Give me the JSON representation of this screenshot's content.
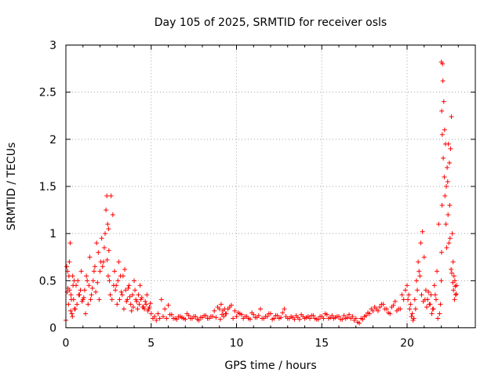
{
  "chart_data": {
    "type": "scatter",
    "title": "Day 105 of 2025, SRMTID for receiver osls",
    "xlabel": "GPS time / hours",
    "ylabel": "SRMTID / TECUs",
    "xlim": [
      0,
      24
    ],
    "ylim": [
      0,
      3
    ],
    "xticks": [
      0,
      5,
      10,
      15,
      20
    ],
    "xtick_labels": [
      "0",
      "5",
      "10",
      "15",
      "20"
    ],
    "yticks": [
      0,
      0.5,
      1,
      1.5,
      2,
      2.5,
      3
    ],
    "ytick_labels": [
      "0",
      "0.5",
      "1",
      "1.5",
      "2",
      "2.5",
      "3"
    ],
    "grid": true,
    "marker": "+",
    "color": "#ff0000",
    "series": [
      {
        "name": "SRMTID",
        "x": [
          0.0,
          0.05,
          0.1,
          0.15,
          0.2,
          0.25,
          0.3,
          0.35,
          0.4,
          0.45,
          0.5,
          0.6,
          0.7,
          0.8,
          0.9,
          1.0,
          1.1,
          1.2,
          1.3,
          1.4,
          1.5,
          1.6,
          1.7,
          1.8,
          1.9,
          2.0,
          2.1,
          2.2,
          2.3,
          2.35,
          2.4,
          2.45,
          2.5,
          2.55,
          2.6,
          2.7,
          2.8,
          2.9,
          3.0,
          3.1,
          3.2,
          3.3,
          3.4,
          3.5,
          3.6,
          3.7,
          3.8,
          3.9,
          4.0,
          4.1,
          4.2,
          4.3,
          4.4,
          4.5,
          4.6,
          4.7,
          4.8,
          4.9,
          5.0,
          5.1,
          5.2,
          5.3,
          5.5,
          5.7,
          5.9,
          6.1,
          6.3,
          6.5,
          6.7,
          6.9,
          7.1,
          7.3,
          7.5,
          7.7,
          7.9,
          8.1,
          8.3,
          8.5,
          8.7,
          8.9,
          9.0,
          9.1,
          9.2,
          9.3,
          9.4,
          9.6,
          9.8,
          10.0,
          10.2,
          10.4,
          10.6,
          10.8,
          11.0,
          11.2,
          11.4,
          11.6,
          11.8,
          12.0,
          12.2,
          12.4,
          12.6,
          12.8,
          13.0,
          13.2,
          13.4,
          13.6,
          13.8,
          14.0,
          14.2,
          14.4,
          14.6,
          14.8,
          15.0,
          15.2,
          15.4,
          15.6,
          15.8,
          16.0,
          16.2,
          16.4,
          16.6,
          16.8,
          17.0,
          17.2,
          17.4,
          17.6,
          17.8,
          18.0,
          18.2,
          18.4,
          18.6,
          18.8,
          19.0,
          19.2,
          19.4,
          19.6,
          19.8,
          20.0,
          20.1,
          20.2,
          20.3,
          20.4,
          20.5,
          20.6,
          20.7,
          20.8,
          20.9,
          21.0,
          21.1,
          21.2,
          21.3,
          21.4,
          21.5,
          21.6,
          21.7,
          21.8,
          21.9,
          21.95,
          22.0,
          22.02,
          22.05,
          22.08,
          22.1,
          22.15,
          22.2,
          22.25,
          22.3,
          22.35,
          22.4,
          22.45,
          22.5,
          22.55,
          22.6,
          22.65,
          22.7,
          22.75,
          22.8,
          22.85,
          22.9,
          0.08,
          0.12,
          0.18,
          0.22,
          0.28,
          0.32,
          0.38,
          0.42,
          0.48,
          0.55,
          0.65,
          0.75,
          0.85,
          0.95,
          1.05,
          1.15,
          1.25,
          1.35,
          1.45,
          1.55,
          1.65,
          1.75,
          1.85,
          1.95,
          2.05,
          2.15,
          2.25,
          2.42,
          2.48,
          2.52,
          2.65,
          2.75,
          2.85,
          2.95,
          3.05,
          3.15,
          3.25,
          3.35,
          3.45,
          3.55,
          3.65,
          3.75,
          3.85,
          3.95,
          4.05,
          4.15,
          4.25,
          4.35,
          4.45,
          4.55,
          4.65,
          4.75,
          4.85,
          4.95,
          5.4,
          5.6,
          5.8,
          6.0,
          6.2,
          6.4,
          6.6,
          6.8,
          7.0,
          7.2,
          7.4,
          7.6,
          7.8,
          8.0,
          8.2,
          8.4,
          8.6,
          8.8,
          9.05,
          9.15,
          9.25,
          9.35,
          9.5,
          9.7,
          9.9,
          10.1,
          10.3,
          10.5,
          10.7,
          10.9,
          11.1,
          11.3,
          11.5,
          11.7,
          11.9,
          12.1,
          12.3,
          12.5,
          12.7,
          12.9,
          13.1,
          13.3,
          13.5,
          13.7,
          13.9,
          14.1,
          14.3,
          14.5,
          14.7,
          14.9,
          15.1,
          15.3,
          15.5,
          15.7,
          15.9,
          16.1,
          16.3,
          16.5,
          16.7,
          16.9,
          17.1,
          17.3,
          17.5,
          17.7,
          17.9,
          18.1,
          18.3,
          18.5,
          18.7,
          18.9,
          19.1,
          19.3,
          19.5,
          19.7,
          19.9,
          20.05,
          20.15,
          20.25,
          20.35,
          20.45,
          20.55,
          20.65,
          20.75,
          20.85,
          20.95,
          21.05,
          21.15,
          21.25,
          21.35,
          21.45,
          21.55,
          21.65,
          21.75,
          21.85,
          22.01,
          22.03,
          22.06,
          22.12,
          22.18,
          22.22,
          22.28,
          22.32,
          22.38,
          22.42,
          22.48,
          22.52,
          22.58,
          22.62,
          22.68,
          22.72,
          22.78,
          22.82,
          22.88
        ],
        "y": [
          0.08,
          0.65,
          0.6,
          0.25,
          0.7,
          0.9,
          0.35,
          0.15,
          0.55,
          0.3,
          0.2,
          0.45,
          0.5,
          0.35,
          0.6,
          0.3,
          0.4,
          0.55,
          0.25,
          0.75,
          0.35,
          0.5,
          0.65,
          0.9,
          0.8,
          0.6,
          0.95,
          0.7,
          1.0,
          1.25,
          1.4,
          1.1,
          1.05,
          0.5,
          0.35,
          0.3,
          0.45,
          0.4,
          0.25,
          0.7,
          0.55,
          0.35,
          0.2,
          0.4,
          0.3,
          0.45,
          0.25,
          0.35,
          0.5,
          0.3,
          0.2,
          0.25,
          0.3,
          0.22,
          0.2,
          0.25,
          0.18,
          0.22,
          0.15,
          0.1,
          0.12,
          0.08,
          0.1,
          0.12,
          0.1,
          0.14,
          0.1,
          0.09,
          0.12,
          0.1,
          0.15,
          0.1,
          0.12,
          0.09,
          0.11,
          0.13,
          0.1,
          0.12,
          0.18,
          0.22,
          0.2,
          0.25,
          0.18,
          0.2,
          0.15,
          0.22,
          0.1,
          0.12,
          0.15,
          0.1,
          0.12,
          0.09,
          0.14,
          0.11,
          0.2,
          0.1,
          0.12,
          0.15,
          0.1,
          0.13,
          0.11,
          0.2,
          0.1,
          0.12,
          0.09,
          0.11,
          0.14,
          0.1,
          0.12,
          0.13,
          0.1,
          0.09,
          0.12,
          0.15,
          0.1,
          0.13,
          0.11,
          0.12,
          0.09,
          0.1,
          0.14,
          0.12,
          0.1,
          0.05,
          0.09,
          0.13,
          0.15,
          0.18,
          0.2,
          0.22,
          0.25,
          0.2,
          0.15,
          0.24,
          0.18,
          0.2,
          0.3,
          0.45,
          0.35,
          0.25,
          0.15,
          0.1,
          0.2,
          0.4,
          0.6,
          0.9,
          1.02,
          0.75,
          0.4,
          0.3,
          0.25,
          0.35,
          0.2,
          0.45,
          0.3,
          0.1,
          0.15,
          0.25,
          0.5,
          0.8,
          1.3,
          2.8,
          2.62,
          2.4,
          2.1,
          1.95,
          1.5,
          1.7,
          1.2,
          0.9,
          1.3,
          1.9,
          2.24,
          1.0,
          0.7,
          0.55,
          0.5,
          0.35,
          0.45,
          0.38,
          0.42,
          0.55,
          0.4,
          0.18,
          0.3,
          0.12,
          0.45,
          0.5,
          0.2,
          0.25,
          0.35,
          0.4,
          0.28,
          0.32,
          0.15,
          0.5,
          0.45,
          0.3,
          0.42,
          0.6,
          0.38,
          0.48,
          0.3,
          0.7,
          0.65,
          0.85,
          0.72,
          0.55,
          0.82,
          1.4,
          1.2,
          0.6,
          0.45,
          0.5,
          0.3,
          0.38,
          0.55,
          0.62,
          0.28,
          0.42,
          0.33,
          0.18,
          0.22,
          0.4,
          0.28,
          0.35,
          0.45,
          0.32,
          0.22,
          0.28,
          0.35,
          0.2,
          0.26,
          0.15,
          0.3,
          0.2,
          0.24,
          0.14,
          0.1,
          0.12,
          0.11,
          0.09,
          0.13,
          0.1,
          0.12,
          0.08,
          0.11,
          0.13,
          0.1,
          0.12,
          0.11,
          0.09,
          0.14,
          0.12,
          0.15,
          0.2,
          0.24,
          0.18,
          0.16,
          0.14,
          0.12,
          0.1,
          0.16,
          0.11,
          0.13,
          0.1,
          0.12,
          0.15,
          0.09,
          0.13,
          0.1,
          0.16,
          0.12,
          0.1,
          0.11,
          0.13,
          0.09,
          0.12,
          0.11,
          0.1,
          0.13,
          0.09,
          0.12,
          0.1,
          0.14,
          0.11,
          0.1,
          0.12,
          0.09,
          0.13,
          0.11,
          0.1,
          0.08,
          0.06,
          0.1,
          0.12,
          0.16,
          0.2,
          0.22,
          0.18,
          0.25,
          0.2,
          0.16,
          0.22,
          0.28,
          0.2,
          0.35,
          0.4,
          0.3,
          0.2,
          0.12,
          0.08,
          0.3,
          0.5,
          0.7,
          0.55,
          0.35,
          0.28,
          0.3,
          0.22,
          0.38,
          0.25,
          0.15,
          0.2,
          0.35,
          0.6,
          1.1,
          2.82,
          2.3,
          2.05,
          1.8,
          1.6,
          1.4,
          1.1,
          0.85,
          1.55,
          1.95,
          1.75,
          0.95,
          0.62,
          0.58,
          0.48,
          0.4,
          0.3,
          0.44,
          0.36
        ]
      }
    ]
  }
}
